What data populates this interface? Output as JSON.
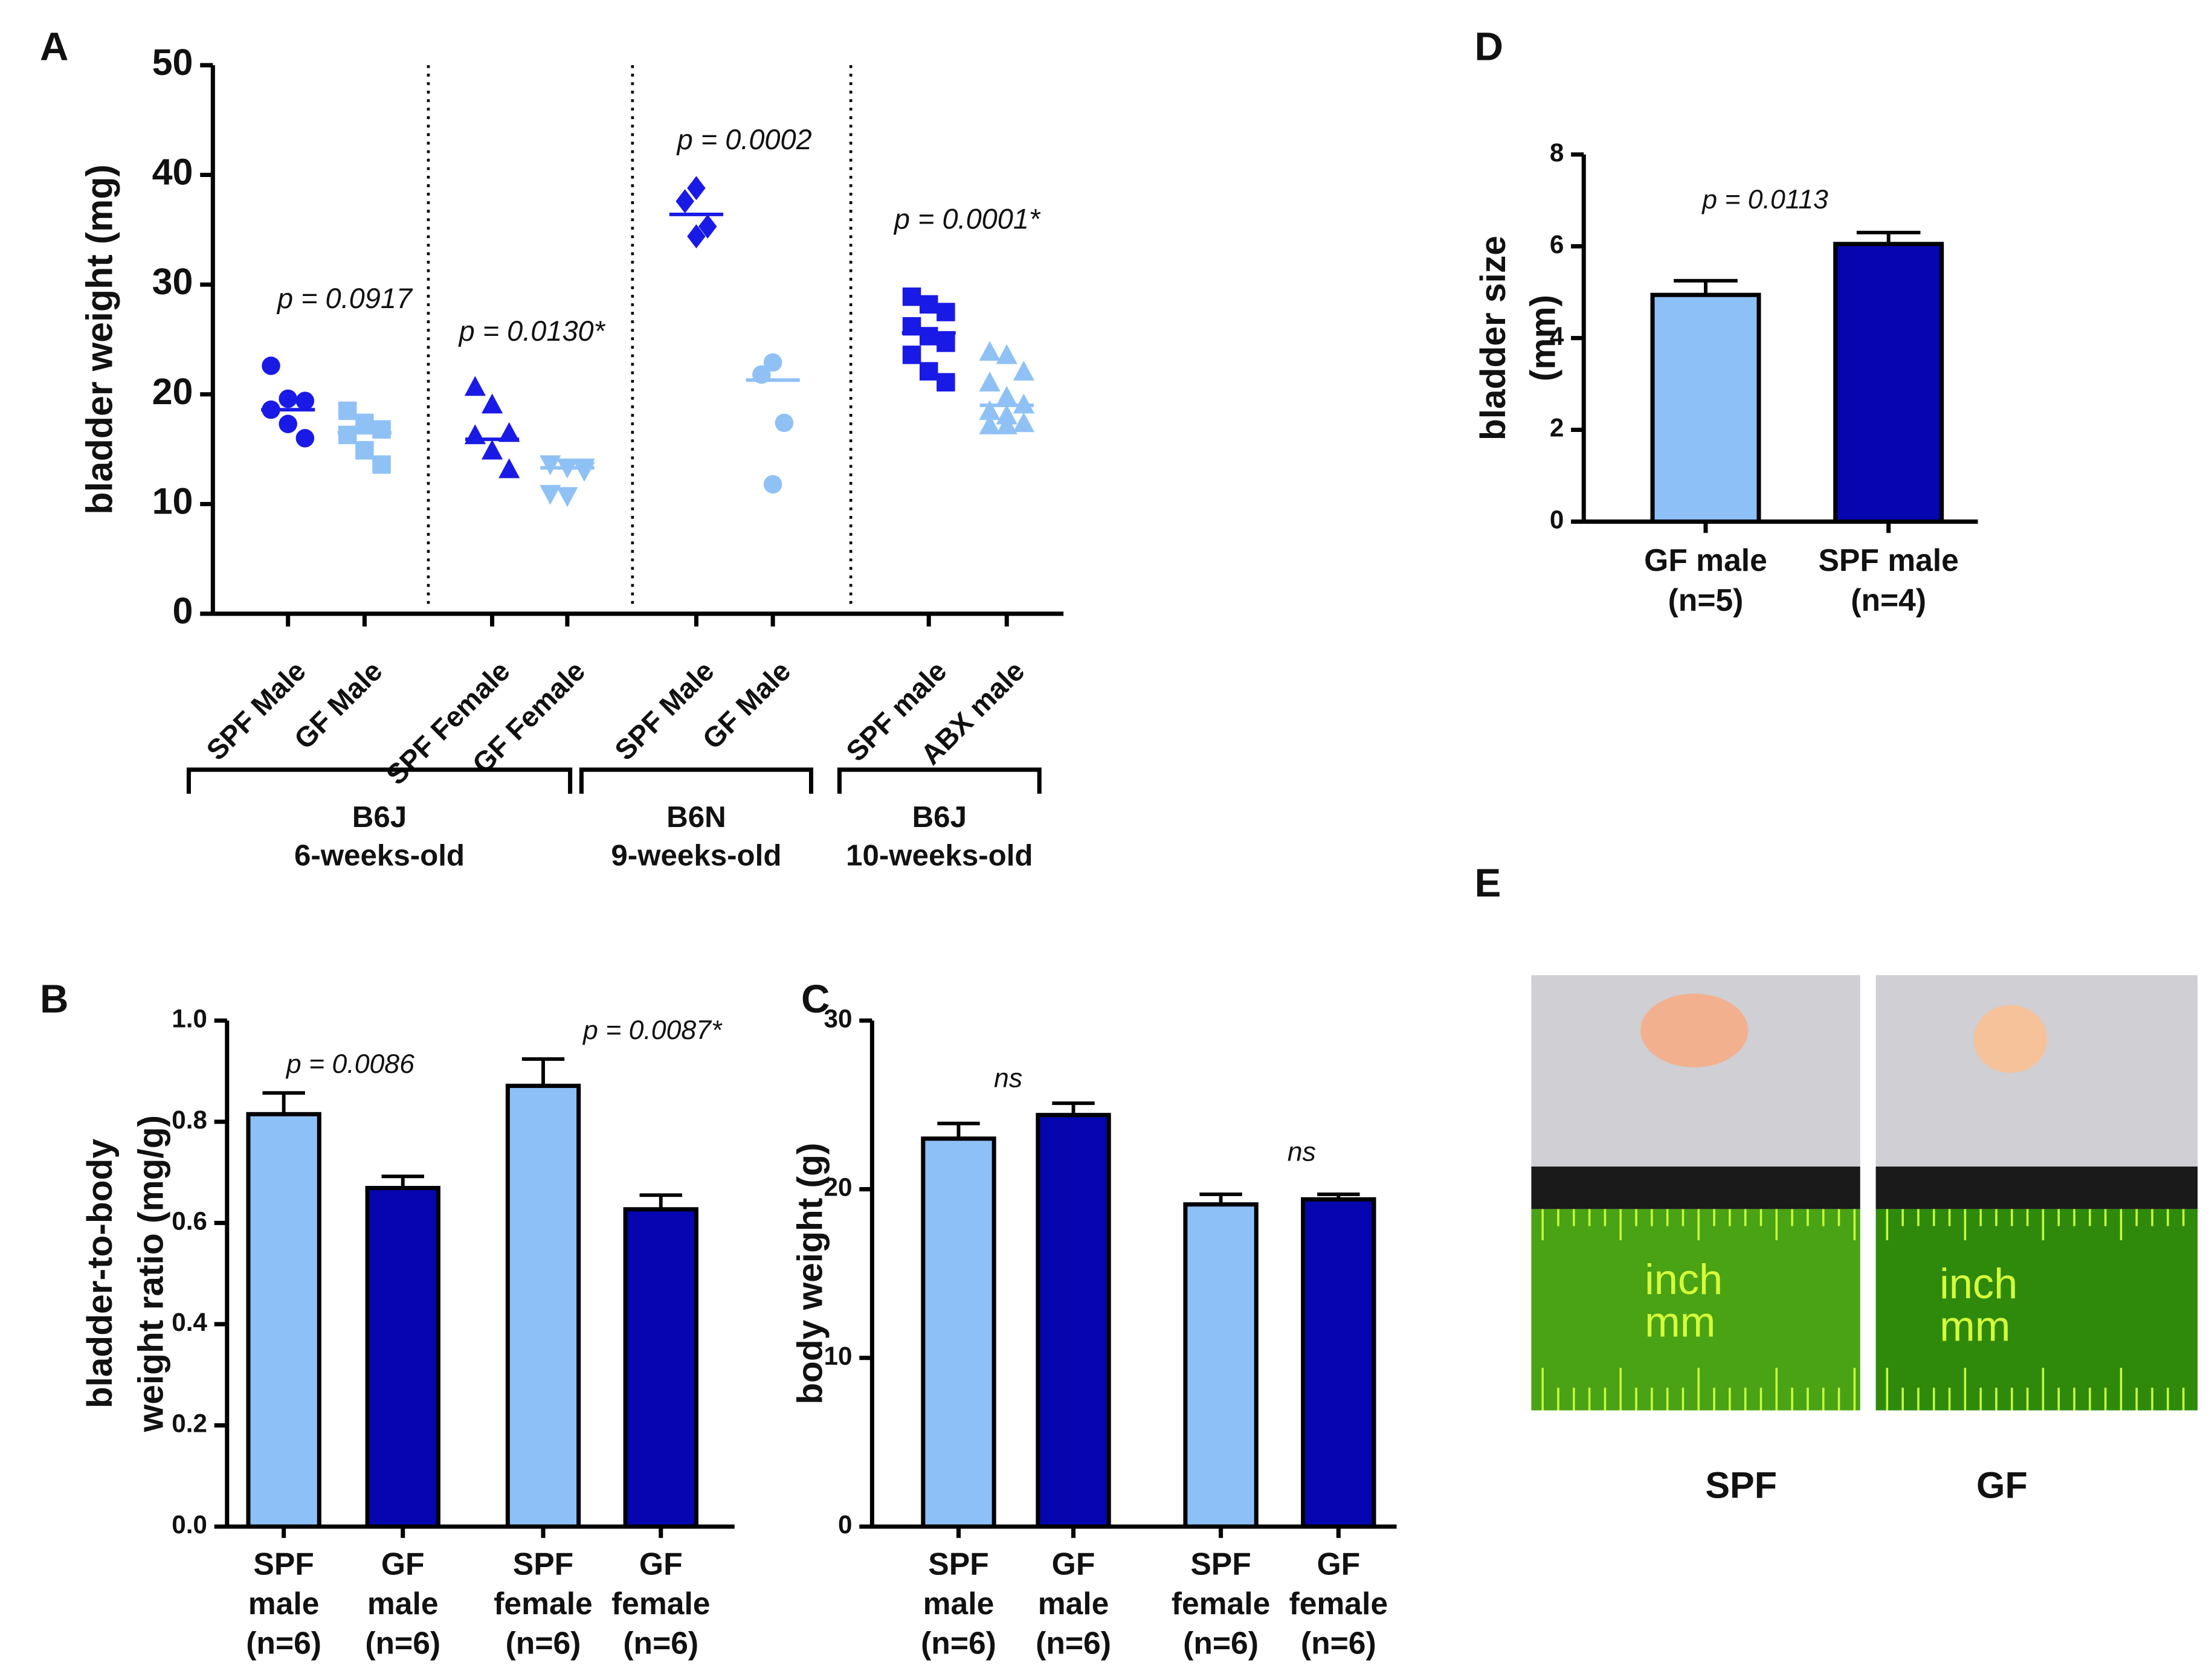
{
  "chart_data": [
    {
      "type": "strip",
      "panel": "A",
      "ylabel": "bladder weight (mg)",
      "ylim": [
        0,
        50
      ],
      "yticks": [
        0,
        10,
        20,
        30,
        40,
        50
      ],
      "series": [
        {
          "name": "SPF Male",
          "color": "#1a1ae6",
          "marker": "circle",
          "values": [
            22.6,
            19.6,
            19.4,
            18.6,
            17.3,
            16.0
          ],
          "center": 18.6
        },
        {
          "name": "GF Male",
          "color": "#8fc1f5",
          "marker": "square",
          "values": [
            18.5,
            17.4,
            16.8,
            16.3,
            14.9,
            13.6
          ],
          "center": 16.5
        },
        {
          "name": "SPF Female",
          "color": "#1a1ae6",
          "marker": "triangle",
          "values": [
            20.7,
            19.1,
            16.5,
            16.3,
            14.9,
            13.2
          ],
          "center": 15.9
        },
        {
          "name": "GF Female",
          "color": "#8fc1f5",
          "marker": "triangle-down",
          "values": [
            13.6,
            13.3,
            13.0,
            10.9,
            10.7,
            13.3
          ],
          "center": 13.3
        },
        {
          "name": "SPF Male",
          "color": "#1a1ae6",
          "marker": "diamond",
          "values": [
            38.8,
            37.6,
            35.3,
            34.4
          ],
          "center": 36.4
        },
        {
          "name": "GF Male",
          "color": "#8fc1f5",
          "marker": "circle",
          "values": [
            22.9,
            21.8,
            17.4,
            11.8
          ],
          "center": 21.3
        },
        {
          "name": "SPF male",
          "color": "#1a1ae6",
          "marker": "square",
          "values": [
            28.9,
            28.2,
            27.5,
            26.2,
            25.3,
            24.7,
            23.6,
            22.1,
            21.1
          ],
          "center": 25.6
        },
        {
          "name": "ABX male",
          "color": "#8fc1f5",
          "marker": "triangle",
          "values": [
            23.9,
            23.6,
            22.1,
            21.1,
            19.8,
            19.1,
            18.5,
            18.1,
            17.4,
            17.2,
            17.2
          ],
          "center": 19.0
        }
      ],
      "annotations": [
        "p = 0.0917",
        "p = 0.0130*",
        "p = 0.0002",
        "p = 0.0001*"
      ],
      "groups": [
        [
          "B6J",
          "6-weeks-old"
        ],
        [
          "B6N",
          "9-weeks-old"
        ],
        [
          "B6J",
          "10-weeks-old"
        ]
      ]
    },
    {
      "type": "bar",
      "panel": "B",
      "ylabel": [
        "bladder-to-body",
        "weight ratio (mg/g)"
      ],
      "ylim": [
        0,
        1.0
      ],
      "yticks": [
        {
          "value": 0,
          "label": "0.0"
        },
        0.2,
        0.4,
        0.6,
        0.8,
        {
          "value": 1.0,
          "label": "1.0"
        }
      ],
      "categories": [
        [
          "SPF",
          "male",
          "(n=6)"
        ],
        [
          "GF",
          "male",
          "(n=6)"
        ],
        [
          "SPF",
          "female",
          "(n=6)"
        ],
        [
          "GF",
          "female",
          "(n=6)"
        ]
      ],
      "values": [
        0.815,
        0.669,
        0.871,
        0.627
      ],
      "errors": [
        0.042,
        0.023,
        0.053,
        0.028
      ],
      "colors": [
        "#8ec0f8",
        "#0606b0",
        "#8ec0f8",
        "#0606b0"
      ],
      "annotations": [
        "p = 0.0086",
        "p = 0.0087*"
      ]
    },
    {
      "type": "bar",
      "panel": "C",
      "ylabel": [
        "body weight (g)"
      ],
      "ylim": [
        0,
        30
      ],
      "yticks": [
        0,
        10,
        20,
        30
      ],
      "categories": [
        [
          "SPF",
          "male",
          "(n=6)"
        ],
        [
          "GF",
          "male",
          "(n=6)"
        ],
        [
          "SPF",
          "female",
          "(n=6)"
        ],
        [
          "GF",
          "female",
          "(n=6)"
        ]
      ],
      "values": [
        23.0,
        24.4,
        19.1,
        19.4
      ],
      "errors": [
        0.9,
        0.7,
        0.6,
        0.3
      ],
      "colors": [
        "#8ec0f8",
        "#0606b0",
        "#8ec0f8",
        "#0606b0"
      ],
      "annotations": [
        "ns",
        "ns"
      ]
    },
    {
      "type": "bar",
      "panel": "D",
      "ylabel": [
        "bladder size",
        "(mm)"
      ],
      "ylim": [
        0,
        8
      ],
      "yticks": [
        0,
        2,
        4,
        6,
        8
      ],
      "categories": [
        [
          "GF male",
          "(n=5)"
        ],
        [
          "SPF male",
          "(n=4)"
        ]
      ],
      "values": [
        4.94,
        6.05
      ],
      "errors": [
        0.31,
        0.25
      ],
      "colors": [
        "#8ec0f8",
        "#0606b0"
      ],
      "annotations": [
        "p = 0.0113"
      ]
    }
  ],
  "photo_panel": {
    "panel": "E",
    "images": [
      {
        "label": "SPF",
        "ruler_text": [
          "inch",
          "mm"
        ]
      },
      {
        "label": "GF",
        "ruler_text": [
          "inch",
          "mm"
        ]
      }
    ]
  }
}
